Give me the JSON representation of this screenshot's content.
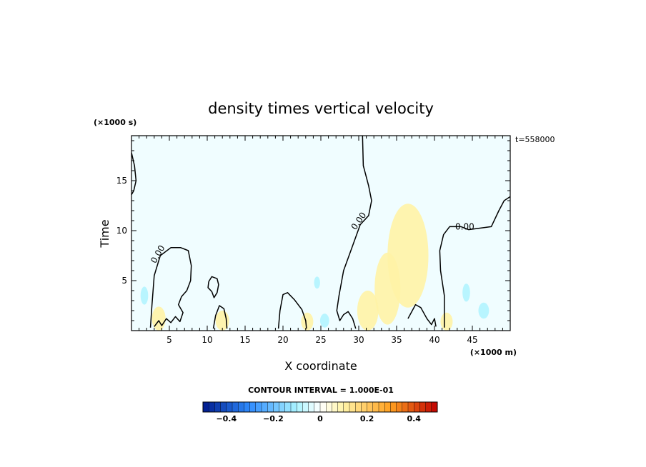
{
  "chart_data": {
    "type": "contour",
    "title": "density times vertical velocity",
    "xlabel": "X coordinate",
    "ylabel": "Time",
    "x_unit": "(×1000 m)",
    "y_unit": "(×1000 s)",
    "time_label": "t=558000",
    "xlim": [
      0,
      50
    ],
    "ylim": [
      0,
      19.5
    ],
    "x_ticks": [
      5,
      10,
      15,
      20,
      25,
      30,
      35,
      40,
      45
    ],
    "y_ticks": [
      5,
      10,
      15
    ],
    "contour_label": "0.00",
    "contour_interval_text": "CONTOUR INTERVAL = 1.000E-01",
    "colorbar": {
      "min": -0.5,
      "max": 0.5,
      "step": 0.025,
      "ticks": [
        -0.4,
        -0.2,
        0,
        0.2,
        0.4
      ],
      "tick_labels": [
        "−0.4",
        "−0.2",
        "0",
        "0.2",
        "0.4"
      ],
      "colors": {
        "strong_negative": "#001a8c",
        "mid_negative": "#2f8cff",
        "weak_negative": "#aaf3ff",
        "zero": "#ffffff",
        "weak_positive": "#fff3a6",
        "mid_positive": "#ffa020",
        "strong_positive": "#c00000"
      }
    },
    "background_fill": "#f0fdff",
    "zero_contours": [
      {
        "name": "left-boundary",
        "points": [
          [
            0,
            17.8
          ],
          [
            0.4,
            16.5
          ],
          [
            0.6,
            15
          ],
          [
            0.3,
            14
          ],
          [
            0,
            13.6
          ]
        ]
      },
      {
        "name": "left-lobe",
        "points": [
          [
            2.5,
            0.3
          ],
          [
            2.7,
            2.5
          ],
          [
            3,
            5.5
          ],
          [
            3.8,
            7.5
          ],
          [
            5.2,
            8.3
          ],
          [
            6.5,
            8.3
          ],
          [
            7.5,
            8
          ],
          [
            7.9,
            6.5
          ],
          [
            7.8,
            5
          ],
          [
            7.3,
            4
          ],
          [
            6.6,
            3.4
          ],
          [
            6.2,
            2.6
          ],
          [
            6.8,
            1.8
          ],
          [
            6.4,
            0.9
          ],
          [
            5.8,
            1.4
          ],
          [
            5.2,
            0.8
          ],
          [
            4.6,
            1.2
          ],
          [
            4,
            0.5
          ],
          [
            3.6,
            1
          ],
          [
            3,
            0.4
          ]
        ]
      },
      {
        "name": "small-loop-9",
        "points": [
          [
            10.2,
            4.9
          ],
          [
            10.6,
            5.4
          ],
          [
            11.3,
            5.2
          ],
          [
            11.5,
            4.6
          ],
          [
            11.3,
            3.8
          ],
          [
            10.9,
            3.3
          ],
          [
            10.6,
            3.9
          ],
          [
            10.1,
            4.3
          ],
          [
            10.2,
            4.9
          ]
        ]
      },
      {
        "name": "bump-11",
        "points": [
          [
            10.8,
            0.2
          ],
          [
            11.1,
            1.5
          ],
          [
            11.6,
            2.5
          ],
          [
            12.2,
            2.2
          ],
          [
            12.5,
            1.2
          ],
          [
            12.6,
            0.2
          ]
        ]
      },
      {
        "name": "ridge-20",
        "points": [
          [
            19.4,
            0.2
          ],
          [
            19.6,
            2
          ],
          [
            20,
            3.6
          ],
          [
            20.6,
            3.8
          ],
          [
            21.5,
            3.1
          ],
          [
            22.5,
            2.1
          ],
          [
            23,
            1
          ],
          [
            23.1,
            0.2
          ]
        ]
      },
      {
        "name": "central-column",
        "points": [
          [
            30.5,
            19.5
          ],
          [
            30.6,
            16.5
          ],
          [
            31.3,
            14.5
          ],
          [
            31.7,
            13
          ],
          [
            31.3,
            11.5
          ],
          [
            30.2,
            10.6
          ],
          [
            29.2,
            8.5
          ],
          [
            28,
            6
          ],
          [
            27.4,
            3.5
          ],
          [
            27.1,
            2
          ],
          [
            27.5,
            1
          ],
          [
            28,
            1.6
          ],
          [
            28.6,
            1.9
          ],
          [
            29.2,
            1.2
          ],
          [
            29.6,
            0.2
          ]
        ]
      },
      {
        "name": "right-lobe",
        "points": [
          [
            50,
            13.4
          ],
          [
            49.2,
            13
          ],
          [
            48.5,
            12
          ],
          [
            47.5,
            10.4
          ],
          [
            44.5,
            10.1
          ],
          [
            43.5,
            10.4
          ],
          [
            42,
            10.4
          ],
          [
            41.2,
            9.6
          ],
          [
            40.7,
            8
          ],
          [
            40.8,
            6
          ],
          [
            41.3,
            3.5
          ],
          [
            41.3,
            0.3
          ]
        ]
      },
      {
        "name": "jagged-37",
        "points": [
          [
            36.5,
            1.2
          ],
          [
            37.5,
            2.6
          ],
          [
            38.2,
            2.3
          ],
          [
            39,
            1.2
          ],
          [
            39.6,
            0.6
          ],
          [
            40,
            1.2
          ],
          [
            40.2,
            0.4
          ]
        ]
      }
    ],
    "positive_patches": [
      {
        "cx": 36.5,
        "cy": 7.5,
        "rx": 2.7,
        "ry": 5.2
      },
      {
        "cx": 33.8,
        "cy": 4.2,
        "rx": 1.7,
        "ry": 3.6
      },
      {
        "cx": 31.2,
        "cy": 2.0,
        "rx": 1.4,
        "ry": 2.0
      },
      {
        "cx": 3.6,
        "cy": 1.2,
        "rx": 0.9,
        "ry": 1.2
      },
      {
        "cx": 12.0,
        "cy": 1.0,
        "rx": 0.9,
        "ry": 1.0
      },
      {
        "cx": 23.2,
        "cy": 0.9,
        "rx": 0.8,
        "ry": 0.9
      },
      {
        "cx": 41.6,
        "cy": 0.9,
        "rx": 0.8,
        "ry": 0.9
      }
    ],
    "negative_patches": [
      {
        "cx": 1.7,
        "cy": 3.5,
        "rx": 0.5,
        "ry": 0.9
      },
      {
        "cx": 24.5,
        "cy": 4.8,
        "rx": 0.4,
        "ry": 0.6
      },
      {
        "cx": 44.2,
        "cy": 3.8,
        "rx": 0.5,
        "ry": 0.9
      },
      {
        "cx": 46.5,
        "cy": 2.0,
        "rx": 0.7,
        "ry": 0.8
      },
      {
        "cx": 25.5,
        "cy": 1.0,
        "rx": 0.6,
        "ry": 0.7
      }
    ]
  }
}
